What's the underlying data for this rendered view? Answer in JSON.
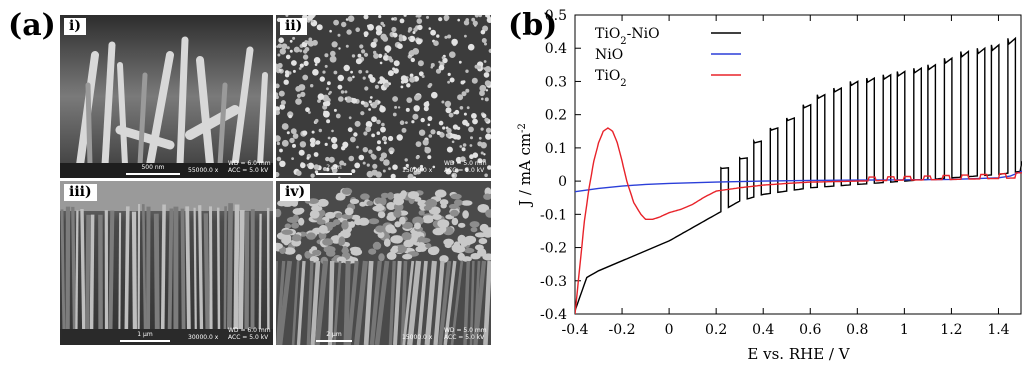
{
  "panel_a": {
    "label": "(a)",
    "images": [
      {
        "label": "i)",
        "scale": "500 nm",
        "info": "WD = 6.0 mm\nACC = 5.0 kV",
        "mag": "55000.0 x"
      },
      {
        "label": "ii)",
        "scale": "2 μm",
        "info": "WD = 5.0 mm\nACC = 5.0 kV",
        "mag": "15000.0 x"
      },
      {
        "label": "iii)",
        "scale": "1 μm",
        "info": "WD = 6.0 mm\nACC = 5.0 kV",
        "mag": "30000.0 x"
      },
      {
        "label": "iv)",
        "scale": "2 μm",
        "info": "WD = 5.0 mm\nACC = 5.0 kV",
        "mag": "15000.0 x"
      }
    ]
  },
  "panel_b": {
    "label": "(b)"
  },
  "chart_data": {
    "type": "line",
    "xlabel": "E vs. RHE / V",
    "ylabel": "J / mA cm",
    "ylabel_sup": "-2",
    "xlim": [
      -0.4,
      1.5
    ],
    "ylim": [
      -0.4,
      0.5
    ],
    "xticks": [
      -0.4,
      -0.2,
      0,
      0.2,
      0.4,
      0.6,
      0.8,
      1,
      1.2,
      1.4
    ],
    "xtick_labels": [
      "-0.4",
      "-0.2",
      "0",
      "0.2",
      "0.4",
      "0.6",
      "0.8",
      "1",
      "1.2",
      "1.4"
    ],
    "yticks": [
      -0.4,
      -0.3,
      -0.2,
      -0.1,
      0,
      0.1,
      0.2,
      0.3,
      0.4,
      0.5
    ],
    "ytick_labels": [
      "-0.4",
      "-0.3",
      "-0.2",
      "-0.1",
      "0",
      "0.1",
      "0.2",
      "0.3",
      "0.4",
      "0.5"
    ],
    "legend_position": "top-left",
    "series": [
      {
        "name": "TiO2-NiO",
        "name_main": "TiO",
        "name_sub": "2",
        "name_rest": "-NiO",
        "color": "#000000",
        "mode": "chopped",
        "base": [
          [
            -0.4,
            -0.39
          ],
          [
            -0.35,
            -0.29
          ],
          [
            -0.3,
            -0.27
          ],
          [
            -0.2,
            -0.24
          ],
          [
            -0.1,
            -0.21
          ],
          [
            0,
            -0.18
          ],
          [
            0.1,
            -0.14
          ],
          [
            0.2,
            -0.1
          ],
          [
            0.3,
            -0.06
          ],
          [
            0.4,
            -0.04
          ],
          [
            0.5,
            -0.03
          ],
          [
            0.6,
            -0.02
          ],
          [
            0.7,
            -0.015
          ],
          [
            0.8,
            -0.01
          ],
          [
            1.0,
            0.0
          ],
          [
            1.2,
            0.01
          ],
          [
            1.4,
            0.02
          ],
          [
            1.5,
            0.03
          ]
        ],
        "pulses": [
          [
            0.22,
            0.04
          ],
          [
            0.3,
            0.07
          ],
          [
            0.36,
            0.12
          ],
          [
            0.43,
            0.16
          ],
          [
            0.5,
            0.19
          ],
          [
            0.57,
            0.23
          ],
          [
            0.63,
            0.26
          ],
          [
            0.7,
            0.28
          ],
          [
            0.77,
            0.3
          ],
          [
            0.84,
            0.31
          ],
          [
            0.91,
            0.32
          ],
          [
            0.97,
            0.33
          ],
          [
            1.04,
            0.34
          ],
          [
            1.1,
            0.35
          ],
          [
            1.17,
            0.37
          ],
          [
            1.24,
            0.39
          ],
          [
            1.31,
            0.4
          ],
          [
            1.37,
            0.41
          ],
          [
            1.44,
            0.43
          ]
        ],
        "pulse_width": 0.032,
        "end": [
          1.5,
          0.06
        ]
      },
      {
        "name": "NiO",
        "name_main": "NiO",
        "name_sub": "",
        "name_rest": "",
        "color": "#2b3fd9",
        "mode": "line",
        "points": [
          [
            -0.4,
            -0.032
          ],
          [
            -0.3,
            -0.022
          ],
          [
            -0.2,
            -0.015
          ],
          [
            -0.1,
            -0.01
          ],
          [
            0,
            -0.007
          ],
          [
            0.2,
            -0.003
          ],
          [
            0.4,
            0.0
          ],
          [
            0.6,
            0.002
          ],
          [
            0.8,
            0.003
          ],
          [
            1.0,
            0.004
          ],
          [
            1.2,
            0.005
          ],
          [
            1.4,
            0.01
          ],
          [
            1.45,
            0.015
          ],
          [
            1.5,
            0.03
          ]
        ]
      },
      {
        "name": "TiO2",
        "name_main": "TiO",
        "name_sub": "2",
        "name_rest": "",
        "color": "#e8232a",
        "mode": "line",
        "points": [
          [
            -0.4,
            -0.4
          ],
          [
            -0.38,
            -0.26
          ],
          [
            -0.36,
            -0.12
          ],
          [
            -0.34,
            -0.02
          ],
          [
            -0.32,
            0.06
          ],
          [
            -0.3,
            0.115
          ],
          [
            -0.28,
            0.15
          ],
          [
            -0.26,
            0.16
          ],
          [
            -0.24,
            0.15
          ],
          [
            -0.22,
            0.115
          ],
          [
            -0.2,
            0.06
          ],
          [
            -0.18,
            0.0
          ],
          [
            -0.15,
            -0.065
          ],
          [
            -0.12,
            -0.1
          ],
          [
            -0.1,
            -0.115
          ],
          [
            -0.07,
            -0.115
          ],
          [
            -0.04,
            -0.108
          ],
          [
            0,
            -0.095
          ],
          [
            0.05,
            -0.085
          ],
          [
            0.1,
            -0.07
          ],
          [
            0.15,
            -0.048
          ],
          [
            0.2,
            -0.03
          ],
          [
            0.3,
            -0.02
          ],
          [
            0.4,
            -0.012
          ],
          [
            0.5,
            -0.007
          ],
          [
            0.6,
            -0.003
          ],
          [
            0.8,
            0.0
          ],
          [
            1.0,
            0.003
          ],
          [
            1.2,
            0.005
          ],
          [
            1.4,
            0.008
          ],
          [
            1.5,
            0.01
          ]
        ],
        "pulses": [
          [
            0.85,
            0.012
          ],
          [
            0.93,
            0.013
          ],
          [
            1.0,
            0.014
          ],
          [
            1.08,
            0.015
          ],
          [
            1.16,
            0.017
          ],
          [
            1.24,
            0.018
          ],
          [
            1.32,
            0.02
          ],
          [
            1.4,
            0.022
          ],
          [
            1.47,
            0.025
          ]
        ],
        "pulse_width": 0.03
      }
    ]
  }
}
